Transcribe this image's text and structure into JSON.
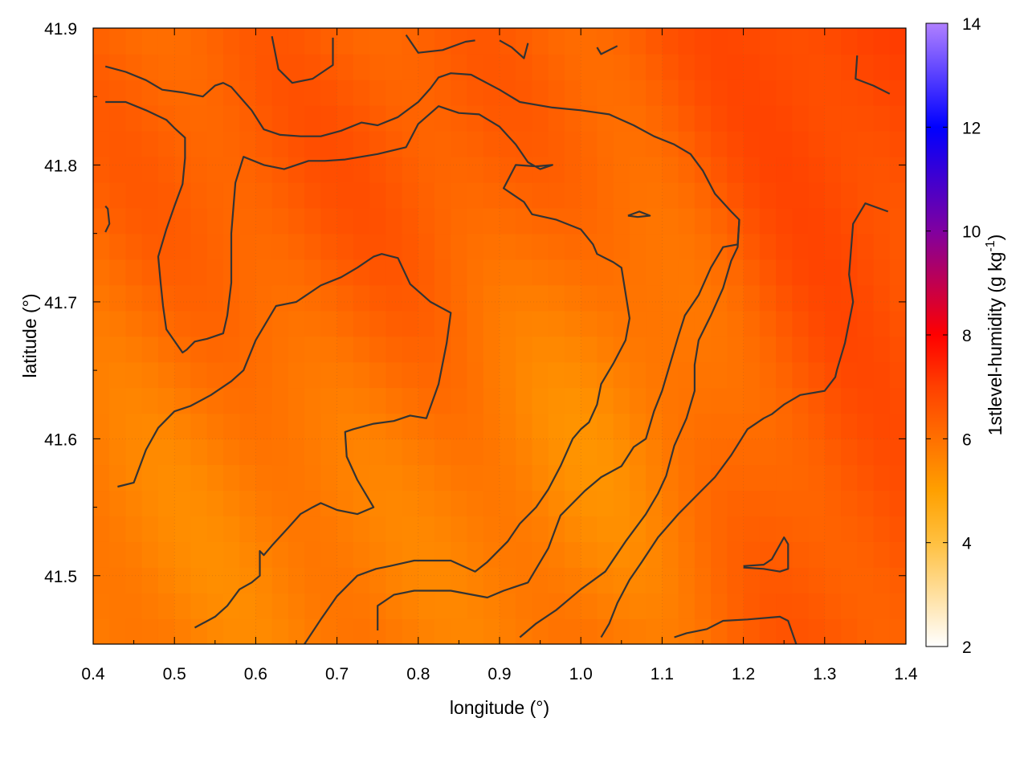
{
  "chart_data": {
    "type": "heatmap",
    "title": "",
    "xlabel": "longitude (°)",
    "ylabel": "latitude (°)",
    "xlim": [
      0.4,
      1.4
    ],
    "ylim": [
      41.45,
      41.9
    ],
    "x_ticks": [
      0.4,
      0.5,
      0.6,
      0.7,
      0.8,
      0.9,
      1.0,
      1.1,
      1.2,
      1.3,
      1.4
    ],
    "x_tick_labels": [
      "0.4",
      "0.5",
      "0.6",
      "0.7",
      "0.8",
      "0.9",
      "1.0",
      "1.1",
      "1.2",
      "1.3",
      "1.4"
    ],
    "y_ticks": [
      41.5,
      41.6,
      41.7,
      41.8,
      41.9
    ],
    "y_tick_labels": [
      "41.5",
      "41.6",
      "41.7",
      "41.8",
      "41.9"
    ],
    "grid": true,
    "colorbar": {
      "label_main": "1stlevel-humidity (g kg",
      "label_sup": "-1",
      "label_end": ")",
      "range": [
        2,
        14
      ],
      "ticks": [
        2,
        4,
        6,
        8,
        10,
        12,
        14
      ],
      "tick_labels": [
        "2",
        "4",
        "6",
        "8",
        "10",
        "12",
        "14"
      ],
      "stops": [
        {
          "value": 2,
          "color": "#ffffff"
        },
        {
          "value": 4,
          "color": "#ffc040"
        },
        {
          "value": 5,
          "color": "#ffa000"
        },
        {
          "value": 6,
          "color": "#ff7000"
        },
        {
          "value": 7,
          "color": "#ff4000"
        },
        {
          "value": 8,
          "color": "#ff0000"
        },
        {
          "value": 10,
          "color": "#8000a0"
        },
        {
          "value": 12,
          "color": "#0000ff"
        },
        {
          "value": 14,
          "color": "#b080ff"
        }
      ]
    },
    "field_range": [
      4.5,
      7.2
    ],
    "contours": [
      [
        [
          0.415,
          41.872
        ],
        [
          0.44,
          41.868
        ],
        [
          0.465,
          41.862
        ],
        [
          0.485,
          41.855
        ],
        [
          0.51,
          41.853
        ],
        [
          0.535,
          41.85
        ],
        [
          0.55,
          41.858
        ],
        [
          0.56,
          41.86
        ],
        [
          0.57,
          41.857
        ],
        [
          0.595,
          41.84
        ],
        [
          0.61,
          41.826
        ],
        [
          0.63,
          41.822
        ],
        [
          0.655,
          41.821
        ],
        [
          0.68,
          41.821
        ],
        [
          0.705,
          41.825
        ],
        [
          0.73,
          41.831
        ],
        [
          0.75,
          41.829
        ],
        [
          0.775,
          41.835
        ],
        [
          0.8,
          41.846
        ],
        [
          0.815,
          41.856
        ],
        [
          0.825,
          41.864
        ],
        [
          0.84,
          41.867
        ],
        [
          0.865,
          41.866
        ],
        [
          0.9,
          41.855
        ],
        [
          0.925,
          41.846
        ],
        [
          0.965,
          41.842
        ],
        [
          1.0,
          41.84
        ],
        [
          1.035,
          41.837
        ],
        [
          1.065,
          41.829
        ],
        [
          1.09,
          41.821
        ],
        [
          1.115,
          41.815
        ],
        [
          1.135,
          41.808
        ],
        [
          1.15,
          41.796
        ],
        [
          1.165,
          41.779
        ],
        [
          1.185,
          41.766
        ],
        [
          1.195,
          41.76
        ],
        [
          1.193,
          41.74
        ],
        [
          1.185,
          41.73
        ],
        [
          1.175,
          41.71
        ],
        [
          1.16,
          41.69
        ],
        [
          1.145,
          41.672
        ],
        [
          1.14,
          41.654
        ],
        [
          1.14,
          41.635
        ],
        [
          1.13,
          41.615
        ],
        [
          1.115,
          41.595
        ],
        [
          1.105,
          41.573
        ],
        [
          1.095,
          41.56
        ],
        [
          1.08,
          41.545
        ],
        [
          1.055,
          41.525
        ],
        [
          1.03,
          41.503
        ],
        [
          1.0,
          41.49
        ],
        [
          0.97,
          41.475
        ],
        [
          0.945,
          41.465
        ],
        [
          0.925,
          41.455
        ]
      ],
      [
        [
          0.415,
          41.846
        ],
        [
          0.44,
          41.846
        ],
        [
          0.465,
          41.84
        ],
        [
          0.49,
          41.833
        ],
        [
          0.5,
          41.827
        ],
        [
          0.513,
          41.82
        ],
        [
          0.513,
          41.805
        ],
        [
          0.51,
          41.786
        ],
        [
          0.5,
          41.77
        ],
        [
          0.49,
          41.753
        ],
        [
          0.48,
          41.733
        ],
        [
          0.483,
          41.714
        ],
        [
          0.486,
          41.697
        ],
        [
          0.49,
          41.68
        ],
        [
          0.51,
          41.663
        ],
        [
          0.515,
          41.665
        ],
        [
          0.525,
          41.671
        ],
        [
          0.54,
          41.673
        ],
        [
          0.56,
          41.677
        ],
        [
          0.565,
          41.69
        ],
        [
          0.57,
          41.714
        ],
        [
          0.57,
          41.75
        ],
        [
          0.575,
          41.787
        ],
        [
          0.585,
          41.806
        ],
        [
          0.61,
          41.8
        ],
        [
          0.635,
          41.797
        ],
        [
          0.665,
          41.803
        ],
        [
          0.685,
          41.803
        ],
        [
          0.71,
          41.804
        ],
        [
          0.75,
          41.808
        ],
        [
          0.785,
          41.813
        ],
        [
          0.8,
          41.83
        ],
        [
          0.825,
          41.843
        ],
        [
          0.85,
          41.838
        ],
        [
          0.875,
          41.837
        ],
        [
          0.9,
          41.828
        ],
        [
          0.92,
          41.815
        ],
        [
          0.935,
          41.802
        ],
        [
          0.95,
          41.797
        ],
        [
          0.965,
          41.8
        ],
        [
          0.945,
          41.799
        ],
        [
          0.92,
          41.8
        ],
        [
          0.905,
          41.783
        ],
        [
          0.93,
          41.773
        ],
        [
          0.94,
          41.764
        ],
        [
          0.97,
          41.76
        ],
        [
          1.0,
          41.753
        ],
        [
          1.015,
          41.742
        ],
        [
          1.02,
          41.735
        ],
        [
          1.04,
          41.729
        ],
        [
          1.05,
          41.725
        ],
        [
          1.06,
          41.688
        ],
        [
          1.055,
          41.672
        ],
        [
          1.04,
          41.655
        ],
        [
          1.025,
          41.64
        ],
        [
          1.02,
          41.625
        ],
        [
          1.01,
          41.612
        ],
        [
          1.0,
          41.607
        ],
        [
          0.99,
          41.6
        ],
        [
          0.975,
          41.58
        ],
        [
          0.96,
          41.563
        ],
        [
          0.945,
          41.55
        ],
        [
          0.925,
          41.538
        ],
        [
          0.91,
          41.525
        ],
        [
          0.885,
          41.51
        ],
        [
          0.87,
          41.503
        ],
        [
          0.84,
          41.511
        ],
        [
          0.795,
          41.511
        ],
        [
          0.765,
          41.507
        ],
        [
          0.748,
          41.505
        ],
        [
          0.725,
          41.5
        ],
        [
          0.7,
          41.485
        ],
        [
          0.68,
          41.468
        ],
        [
          0.66,
          41.45
        ]
      ],
      [
        [
          0.43,
          41.565
        ],
        [
          0.45,
          41.568
        ],
        [
          0.465,
          41.592
        ],
        [
          0.48,
          41.608
        ],
        [
          0.5,
          41.62
        ],
        [
          0.52,
          41.624
        ],
        [
          0.545,
          41.632
        ],
        [
          0.57,
          41.642
        ],
        [
          0.585,
          41.65
        ],
        [
          0.6,
          41.672
        ],
        [
          0.625,
          41.697
        ],
        [
          0.65,
          41.7
        ],
        [
          0.68,
          41.712
        ],
        [
          0.705,
          41.718
        ],
        [
          0.725,
          41.725
        ],
        [
          0.745,
          41.733
        ],
        [
          0.755,
          41.735
        ],
        [
          0.775,
          41.732
        ],
        [
          0.79,
          41.713
        ],
        [
          0.815,
          41.7
        ],
        [
          0.84,
          41.692
        ],
        [
          0.835,
          41.67
        ],
        [
          0.825,
          41.64
        ],
        [
          0.81,
          41.615
        ],
        [
          0.79,
          41.617
        ],
        [
          0.77,
          41.613
        ],
        [
          0.745,
          41.611
        ],
        [
          0.72,
          41.607
        ],
        [
          0.71,
          41.605
        ],
        [
          0.712,
          41.587
        ],
        [
          0.725,
          41.57
        ],
        [
          0.745,
          41.55
        ],
        [
          0.725,
          41.545
        ],
        [
          0.7,
          41.548
        ],
        [
          0.68,
          41.553
        ],
        [
          0.67,
          41.55
        ],
        [
          0.655,
          41.545
        ],
        [
          0.64,
          41.535
        ],
        [
          0.62,
          41.522
        ],
        [
          0.61,
          41.515
        ],
        [
          0.605,
          41.518
        ],
        [
          0.605,
          41.5
        ],
        [
          0.595,
          41.495
        ],
        [
          0.58,
          41.49
        ],
        [
          0.565,
          41.478
        ],
        [
          0.55,
          41.47
        ],
        [
          0.525,
          41.462
        ]
      ],
      [
        [
          0.75,
          41.46
        ],
        [
          0.75,
          41.478
        ],
        [
          0.77,
          41.486
        ],
        [
          0.795,
          41.489
        ],
        [
          0.84,
          41.489
        ],
        [
          0.885,
          41.484
        ],
        [
          0.905,
          41.489
        ],
        [
          0.935,
          41.495
        ],
        [
          0.96,
          41.52
        ],
        [
          0.975,
          41.544
        ],
        [
          1.005,
          41.562
        ],
        [
          1.025,
          41.572
        ],
        [
          1.05,
          41.58
        ],
        [
          1.065,
          41.594
        ],
        [
          1.08,
          41.6
        ],
        [
          1.09,
          41.62
        ],
        [
          1.1,
          41.635
        ],
        [
          1.11,
          41.655
        ],
        [
          1.12,
          41.675
        ],
        [
          1.128,
          41.69
        ],
        [
          1.145,
          41.705
        ],
        [
          1.16,
          41.725
        ],
        [
          1.175,
          41.74
        ],
        [
          1.193,
          41.742
        ],
        [
          1.195,
          41.76
        ]
      ],
      [
        [
          1.025,
          41.455
        ],
        [
          1.035,
          41.465
        ],
        [
          1.045,
          41.48
        ],
        [
          1.06,
          41.497
        ],
        [
          1.075,
          41.51
        ],
        [
          1.095,
          41.528
        ],
        [
          1.12,
          41.545
        ],
        [
          1.145,
          41.56
        ],
        [
          1.165,
          41.572
        ],
        [
          1.185,
          41.588
        ],
        [
          1.205,
          41.607
        ],
        [
          1.225,
          41.615
        ],
        [
          1.235,
          41.618
        ],
        [
          1.25,
          41.625
        ],
        [
          1.27,
          41.632
        ],
        [
          1.3,
          41.635
        ],
        [
          1.313,
          41.645
        ],
        [
          1.315,
          41.65
        ],
        [
          1.325,
          41.67
        ],
        [
          1.335,
          41.7
        ],
        [
          1.33,
          41.72
        ],
        [
          1.335,
          41.757
        ],
        [
          1.35,
          41.772
        ],
        [
          1.378,
          41.766
        ]
      ],
      [
        [
          1.34,
          41.88
        ],
        [
          1.338,
          41.863
        ],
        [
          1.36,
          41.858
        ],
        [
          1.38,
          41.852
        ]
      ],
      [
        [
          1.115,
          41.455
        ],
        [
          1.13,
          41.458
        ],
        [
          1.155,
          41.461
        ],
        [
          1.175,
          41.467
        ],
        [
          1.205,
          41.468
        ],
        [
          1.245,
          41.47
        ],
        [
          1.255,
          41.467
        ],
        [
          1.265,
          41.45
        ]
      ],
      [
        [
          1.2,
          41.506
        ],
        [
          1.225,
          41.505
        ],
        [
          1.245,
          41.503
        ],
        [
          1.255,
          41.505
        ],
        [
          1.255,
          41.523
        ],
        [
          1.25,
          41.528
        ],
        [
          1.235,
          41.512
        ],
        [
          1.225,
          41.508
        ],
        [
          1.2,
          41.507
        ]
      ],
      [
        [
          1.058,
          41.763
        ],
        [
          1.07,
          41.762
        ],
        [
          1.085,
          41.763
        ],
        [
          1.072,
          41.766
        ],
        [
          1.058,
          41.763
        ]
      ],
      [
        [
          0.415,
          41.77
        ],
        [
          0.418,
          41.768
        ],
        [
          0.42,
          41.757
        ],
        [
          0.415,
          41.751
        ]
      ],
      [
        [
          0.62,
          41.894
        ],
        [
          0.628,
          41.87
        ],
        [
          0.645,
          41.86
        ],
        [
          0.67,
          41.863
        ],
        [
          0.695,
          41.873
        ],
        [
          0.695,
          41.893
        ]
      ],
      [
        [
          0.785,
          41.895
        ],
        [
          0.8,
          41.882
        ],
        [
          0.83,
          41.884
        ],
        [
          0.858,
          41.89
        ],
        [
          0.87,
          41.891
        ]
      ],
      [
        [
          0.9,
          41.891
        ],
        [
          0.915,
          41.886
        ],
        [
          0.93,
          41.878
        ],
        [
          0.935,
          41.889
        ]
      ],
      [
        [
          1.02,
          41.886
        ],
        [
          1.025,
          41.881
        ],
        [
          1.045,
          41.887
        ]
      ]
    ]
  }
}
